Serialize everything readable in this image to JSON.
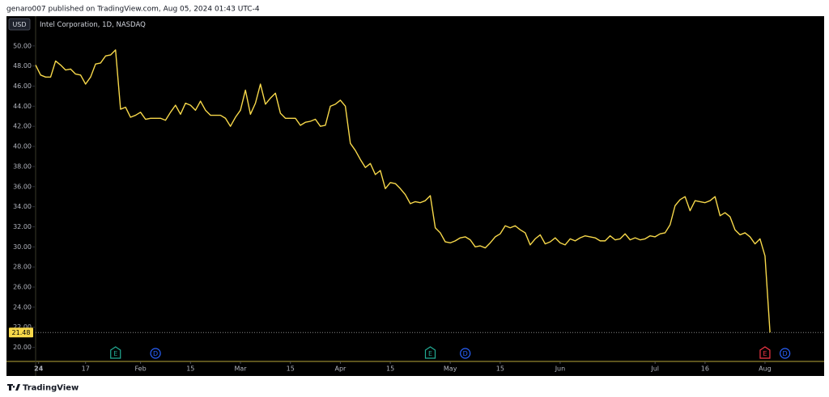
{
  "header": "genaro007 published on TradingView.com, Aug 05, 2024 01:43 UTC-4",
  "footer": "TradingView",
  "chart_data": {
    "type": "line",
    "title": "Intel Corporation, 1D, NASDAQ",
    "currency": "USD",
    "color": "#f7d84a",
    "values": [
      48.1,
      47.1,
      46.9,
      46.9,
      48.5,
      48.1,
      47.6,
      47.7,
      47.2,
      47.1,
      46.2,
      46.9,
      48.2,
      48.3,
      49.0,
      49.1,
      49.6,
      43.7,
      43.9,
      42.9,
      43.1,
      43.4,
      42.7,
      42.8,
      42.8,
      42.8,
      42.6,
      43.4,
      44.1,
      43.2,
      44.3,
      44.1,
      43.6,
      44.5,
      43.6,
      43.1,
      43.1,
      43.1,
      42.8,
      42.0,
      42.9,
      43.6,
      45.6,
      43.2,
      44.3,
      46.2,
      44.2,
      44.8,
      45.3,
      43.3,
      42.8,
      42.8,
      42.8,
      42.1,
      42.4,
      42.5,
      42.7,
      42.0,
      42.1,
      44.0,
      44.2,
      44.6,
      44.0,
      40.3,
      39.6,
      38.7,
      37.9,
      38.3,
      37.2,
      37.6,
      35.8,
      36.4,
      36.3,
      35.8,
      35.2,
      34.3,
      34.5,
      34.4,
      34.6,
      35.1,
      31.9,
      31.4,
      30.5,
      30.4,
      30.6,
      30.9,
      31.0,
      30.7,
      30.0,
      30.1,
      29.9,
      30.4,
      31.0,
      31.3,
      32.1,
      31.9,
      32.1,
      31.7,
      31.4,
      30.2,
      30.8,
      31.2,
      30.3,
      30.5,
      30.9,
      30.4,
      30.2,
      30.8,
      30.6,
      30.9,
      31.1,
      31.0,
      30.9,
      30.6,
      30.6,
      31.1,
      30.7,
      30.8,
      31.3,
      30.7,
      30.9,
      30.7,
      30.8,
      31.1,
      31.0,
      31.3,
      31.4,
      32.2,
      34.1,
      34.7,
      35.0,
      33.6,
      34.6,
      34.5,
      34.4,
      34.6,
      35.0,
      33.1,
      33.4,
      33.0,
      31.7,
      31.2,
      31.4,
      31.0,
      30.3,
      30.8,
      29.1,
      21.48
    ],
    "price_line": {
      "value": 21.48,
      "label": "21.48"
    },
    "xlim": [
      0,
      158
    ],
    "xticks": [
      {
        "value": 0.6,
        "label": "24"
      },
      {
        "value": 10,
        "label": "17"
      },
      {
        "value": 21,
        "label": "Feb"
      },
      {
        "value": 31,
        "label": "15"
      },
      {
        "value": 41,
        "label": "Mar"
      },
      {
        "value": 51,
        "label": "15"
      },
      {
        "value": 61,
        "label": "Apr"
      },
      {
        "value": 71,
        "label": "15"
      },
      {
        "value": 83,
        "label": "May"
      },
      {
        "value": 93,
        "label": "15"
      },
      {
        "value": 105,
        "label": "Jun"
      },
      {
        "value": 124,
        "label": "Jul"
      },
      {
        "value": 134,
        "label": "16"
      },
      {
        "value": 146,
        "label": "Aug"
      }
    ],
    "ylim": [
      18.6,
      52.8
    ],
    "yticks": [
      {
        "value": 20,
        "label": "20.00"
      },
      {
        "value": 22,
        "label": "22.00"
      },
      {
        "value": 24,
        "label": "24.00"
      },
      {
        "value": 26,
        "label": "26.00"
      },
      {
        "value": 28,
        "label": "28.00"
      },
      {
        "value": 30,
        "label": "30.00"
      },
      {
        "value": 32,
        "label": "32.00"
      },
      {
        "value": 34,
        "label": "34.00"
      },
      {
        "value": 36,
        "label": "36.00"
      },
      {
        "value": 38,
        "label": "38.00"
      },
      {
        "value": 40,
        "label": "40.00"
      },
      {
        "value": 42,
        "label": "42.00"
      },
      {
        "value": 44,
        "label": "44.00"
      },
      {
        "value": 46,
        "label": "46.00"
      },
      {
        "value": 48,
        "label": "48.00"
      },
      {
        "value": 50,
        "label": "50.00"
      }
    ],
    "events": [
      {
        "label": "E",
        "x": 16,
        "color": "#22ab94"
      },
      {
        "label": "D",
        "x": 24,
        "color": "#2962ff"
      },
      {
        "label": "E",
        "x": 79,
        "color": "#22ab94"
      },
      {
        "label": "D",
        "x": 86,
        "color": "#2962ff"
      },
      {
        "label": "E",
        "x": 146,
        "color": "#f23645"
      },
      {
        "label": "D",
        "x": 150,
        "color": "#2962ff"
      }
    ]
  }
}
